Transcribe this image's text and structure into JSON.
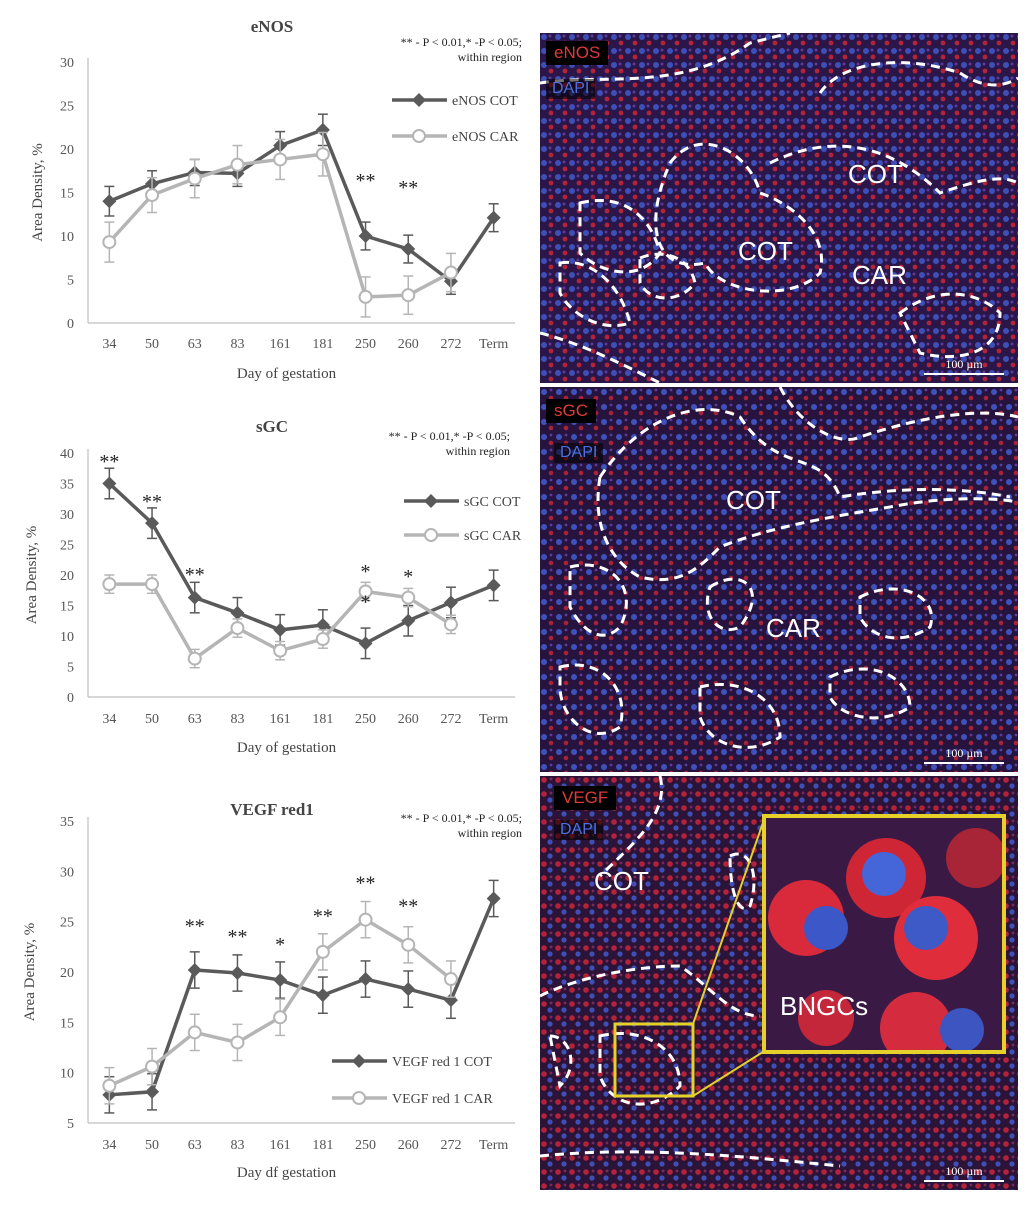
{
  "charts": [
    {
      "title": "eNOS",
      "note_line1": "** - P < 0.01,* -P < 0.05;",
      "note_line2": "within region",
      "ylabel": "Area Density, %",
      "xlabel": "Day of gestation",
      "legend": [
        "eNOS COT",
        "eNOS CAR"
      ]
    },
    {
      "title": "sGC",
      "note_line1": "** - P < 0.01,* -P < 0.05;",
      "note_line2": "within region",
      "ylabel": "Area Density, %",
      "xlabel": "Day of gestation",
      "legend": [
        "sGC COT",
        "sGC CAR"
      ]
    },
    {
      "title": "VEGF red1",
      "note_line1": "** - P < 0.01,* -P < 0.05;",
      "note_line2": "within region",
      "ylabel": "Area Density, %",
      "xlabel": "Day df gestation",
      "legend": [
        "VEGF red 1  COT",
        "VEGF red 1  CAR"
      ]
    }
  ],
  "chart_data": [
    {
      "type": "line",
      "title": "eNOS",
      "categories": [
        "34",
        "50",
        "63",
        "83",
        "161",
        "181",
        "250",
        "260",
        "272",
        "Term"
      ],
      "ylim": [
        0,
        30
      ],
      "yticks": [
        0,
        5,
        10,
        15,
        20,
        25,
        30
      ],
      "grid": false,
      "legend_position": "right",
      "series": [
        {
          "name": "eNOS COT",
          "color": "#5a5a5a",
          "marker": "diamond",
          "values": [
            14,
            16,
            17.3,
            17.2,
            20.4,
            22.2,
            10,
            8.5,
            4.8,
            12.1
          ],
          "errors": [
            1.7,
            1.5,
            1.5,
            1.5,
            1.6,
            1.8,
            1.6,
            1.6,
            1.5,
            1.6
          ]
        },
        {
          "name": "eNOS CAR",
          "color": "#b5b5b5",
          "marker": "circle",
          "values": [
            9.3,
            14.7,
            16.6,
            18.2,
            18.8,
            19.4,
            3,
            3.2,
            5.8,
            null
          ],
          "errors": [
            2.3,
            2,
            2.2,
            2.2,
            2.3,
            2.5,
            2.3,
            2.2,
            2.2,
            null
          ]
        }
      ],
      "annotations": [
        {
          "category": "250",
          "text": "**",
          "y": 16.3
        },
        {
          "category": "260",
          "text": "**",
          "y": 15.5
        }
      ]
    },
    {
      "type": "line",
      "title": "sGC",
      "categories": [
        "34",
        "50",
        "63",
        "83",
        "161",
        "181",
        "250",
        "260",
        "272",
        "Term"
      ],
      "ylim": [
        0,
        40
      ],
      "yticks": [
        0,
        5,
        10,
        15,
        20,
        25,
        30,
        35,
        40
      ],
      "grid": false,
      "legend_position": "right",
      "series": [
        {
          "name": "sGC COT",
          "color": "#5a5a5a",
          "marker": "diamond",
          "values": [
            35,
            28.5,
            16.3,
            13.8,
            11,
            11.8,
            8.8,
            12.5,
            15.5,
            18.3
          ],
          "errors": [
            2.5,
            2.5,
            2.5,
            2.5,
            2.5,
            2.5,
            2.5,
            2.5,
            2.5,
            2.5
          ]
        },
        {
          "name": "sGC CAR",
          "color": "#b5b5b5",
          "marker": "circle",
          "values": [
            18.5,
            18.5,
            6.3,
            11.3,
            7.6,
            9.5,
            17.3,
            16.3,
            11.9,
            null
          ],
          "errors": [
            1.5,
            1.5,
            1.5,
            1.5,
            1.5,
            1.5,
            1.5,
            1.5,
            1.5,
            null
          ]
        }
      ],
      "annotations": [
        {
          "category": "34",
          "text": "**",
          "y": 38.5
        },
        {
          "category": "50",
          "text": "**",
          "y": 32
        },
        {
          "category": "63",
          "text": "**",
          "y": 20
        },
        {
          "category": "250",
          "text": "*",
          "y": 20.5
        },
        {
          "category": "250",
          "text": "*",
          "y": 15.5
        },
        {
          "category": "260",
          "text": "*",
          "y": 19.7
        }
      ]
    },
    {
      "type": "line",
      "title": "VEGF red1",
      "categories": [
        "34",
        "50",
        "63",
        "83",
        "161",
        "181",
        "250",
        "260",
        "272",
        "Term"
      ],
      "ylim": [
        5,
        35
      ],
      "yticks": [
        5,
        10,
        15,
        20,
        25,
        30,
        35
      ],
      "grid": false,
      "legend_position": "bottom-right",
      "series": [
        {
          "name": "VEGF red 1  COT",
          "color": "#5a5a5a",
          "marker": "diamond",
          "values": [
            7.8,
            8.1,
            20.2,
            19.9,
            19.2,
            17.7,
            19.3,
            18.3,
            17.2,
            27.3
          ],
          "errors": [
            1.8,
            1.8,
            1.8,
            1.8,
            1.8,
            1.8,
            1.8,
            1.8,
            1.8,
            1.8
          ]
        },
        {
          "name": "VEGF red 1  CAR",
          "color": "#b5b5b5",
          "marker": "circle",
          "values": [
            8.7,
            10.6,
            14,
            13,
            15.5,
            22,
            25.2,
            22.7,
            19.3,
            null
          ],
          "errors": [
            1.8,
            1.8,
            1.8,
            1.8,
            1.8,
            1.8,
            1.8,
            1.8,
            1.8,
            null
          ]
        }
      ],
      "annotations": [
        {
          "category": "63",
          "text": "**",
          "y": 24.5
        },
        {
          "category": "83",
          "text": "**",
          "y": 23.5
        },
        {
          "category": "161",
          "text": "*",
          "y": 22.7
        },
        {
          "category": "181",
          "text": "**",
          "y": 25.5
        },
        {
          "category": "250",
          "text": "**",
          "y": 28.8
        },
        {
          "category": "260",
          "text": "**",
          "y": 26.5
        }
      ]
    }
  ],
  "micrographs": [
    {
      "marker": "eNOS",
      "marker_color": "#e02a2a",
      "counterstain": "DAPI",
      "regions": [
        "COT",
        "COT",
        "CAR"
      ],
      "scale": "100 µm"
    },
    {
      "marker": "sGC",
      "marker_color": "#e02a2a",
      "counterstain": "DAPI",
      "regions": [
        "COT",
        "CAR"
      ],
      "scale": "100 µm"
    },
    {
      "marker": "VEGF",
      "marker_color": "#e02a2a",
      "counterstain": "DAPI",
      "regions": [
        "COT"
      ],
      "inset_label": "BNGCs",
      "scale": "100 µm"
    }
  ]
}
